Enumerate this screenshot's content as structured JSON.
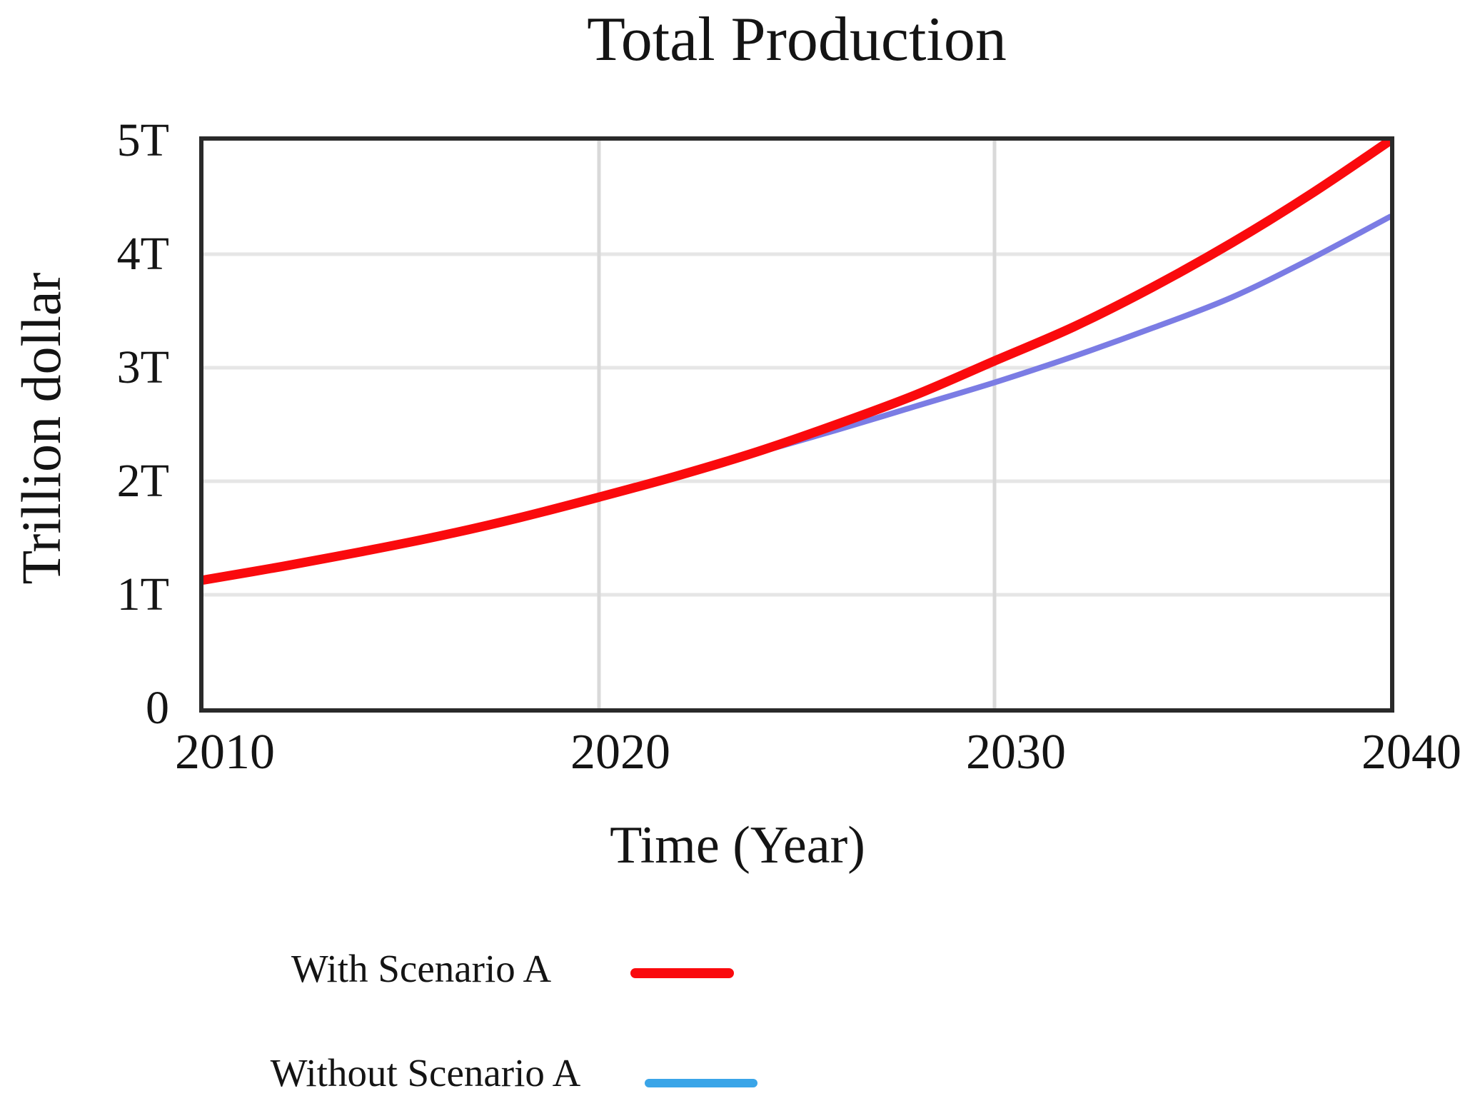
{
  "figure": {
    "title": "Total Production",
    "x_axis_title": "Time (Year)",
    "y_axis_title": "Trillion dollar"
  },
  "legend": {
    "items": [
      {
        "label": "With Scenario A",
        "swatch_color": "#fa0a0d"
      },
      {
        "label": "Without Scenario A",
        "swatch_color": "#3aa5e8"
      }
    ]
  },
  "chart_data": {
    "type": "line",
    "title": "Total Production",
    "xlabel": "Time (Year)",
    "ylabel": "Trillion dollar",
    "xlim": [
      2010,
      2040
    ],
    "ylim": [
      0,
      5
    ],
    "x_ticks": [
      2010,
      2020,
      2030,
      2040
    ],
    "y_ticks": [
      {
        "value": 0,
        "label": "0"
      },
      {
        "value": 1,
        "label": "1T"
      },
      {
        "value": 2,
        "label": "2T"
      },
      {
        "value": 3,
        "label": "3T"
      },
      {
        "value": 4,
        "label": "4T"
      },
      {
        "value": 5,
        "label": "5T"
      }
    ],
    "grid": {
      "horizontal_values": [
        1,
        2,
        3,
        4
      ],
      "vertical_years": [
        2020,
        2030
      ]
    },
    "grid_colors": {
      "horizontal": "#e6e6e6",
      "vertical": "#d9d9d9"
    },
    "x": [
      2010,
      2012,
      2014,
      2016,
      2018,
      2020,
      2022,
      2024,
      2026,
      2028,
      2030,
      2032,
      2034,
      2036,
      2038,
      2040
    ],
    "series": [
      {
        "name": "With Scenario A",
        "color": "#fa0a0d",
        "stroke_width": 13,
        "values": [
          1.13,
          1.25,
          1.38,
          1.52,
          1.68,
          1.86,
          2.05,
          2.26,
          2.5,
          2.76,
          3.06,
          3.36,
          3.71,
          4.1,
          4.53,
          5.0
        ]
      },
      {
        "name": "Without Scenario A",
        "color": "#7b7ce4",
        "stroke_width": 8,
        "values": [
          1.13,
          1.25,
          1.38,
          1.52,
          1.68,
          1.86,
          2.05,
          2.25,
          2.45,
          2.66,
          2.87,
          3.1,
          3.35,
          3.62,
          3.96,
          4.33
        ]
      }
    ]
  }
}
